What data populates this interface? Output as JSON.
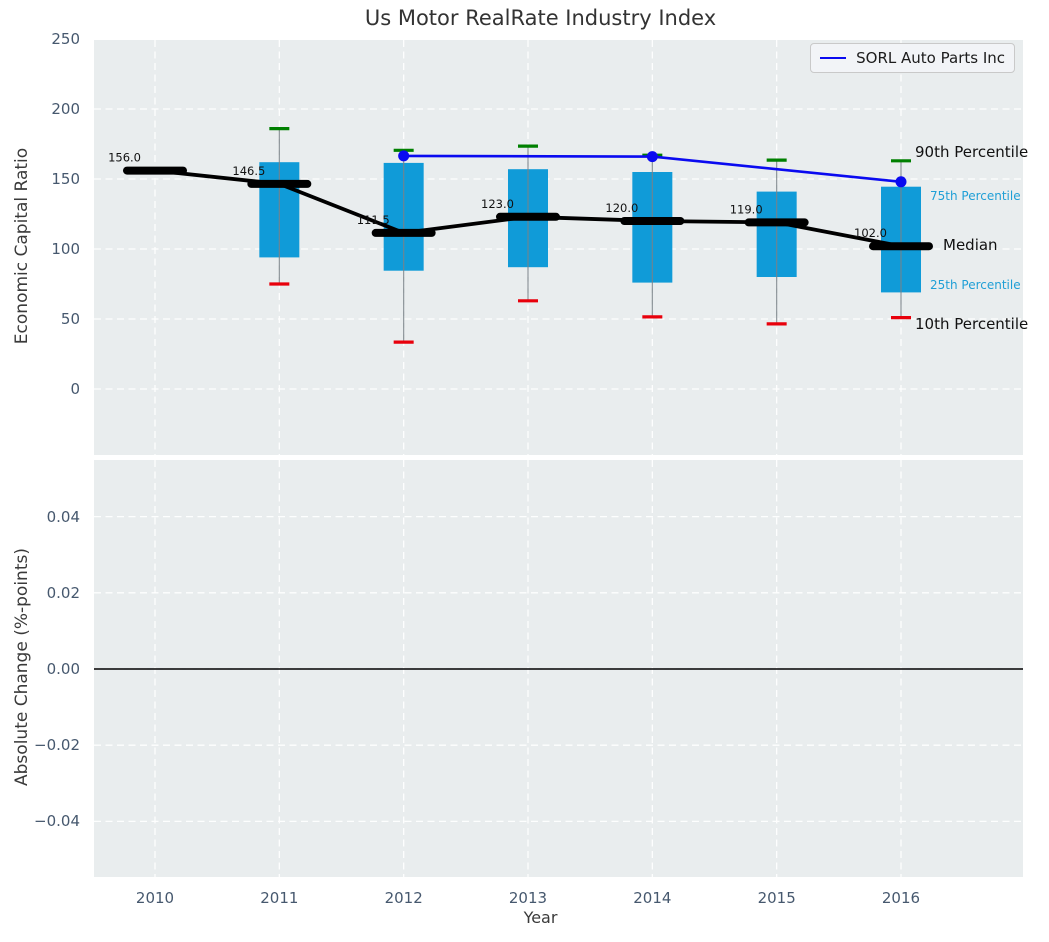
{
  "page": {
    "title": "Us Motor RealRate Industry Index"
  },
  "legend": {
    "label": "SORL Auto Parts Inc"
  },
  "right_labels": {
    "p90": "90th Percentile",
    "p75": "75th Percentile",
    "median": "Median",
    "p25": "25th Percentile",
    "p10": "10th Percentile"
  },
  "colors": {
    "axes_bg": "#e9edee",
    "grid": "#ffffff",
    "box_fill": "#109bd8",
    "whisker": "#7a8288",
    "cap_green": "#008000",
    "cap_red": "#e8000b",
    "median_line": "#000000",
    "sorl_line": "#0a0af0",
    "zero_line": "#000000",
    "tick_text": "#46586e",
    "annotation_cyan": "#1f9fd6"
  },
  "chart_data": [
    {
      "type": "boxplot_with_line",
      "title": "Us Motor RealRate Industry Index",
      "ylabel": "Economic Capital Ratio",
      "xlabel": "",
      "ylim": [
        -47,
        250
      ],
      "xlim": [
        2009.5,
        2017
      ],
      "grid": true,
      "legend_position": "upper right",
      "ytick_values": [
        250,
        200,
        150,
        100,
        50,
        0
      ],
      "ytick_labels": [
        "250",
        "200",
        "150",
        "100",
        "50",
        "0"
      ],
      "categories": [
        2010,
        2011,
        2012,
        2013,
        2014,
        2015,
        2016
      ],
      "boxes": [
        {
          "year": 2010,
          "median": 156.0
        },
        {
          "year": 2011,
          "p10": 75,
          "p25": 94,
          "median": 146.5,
          "p75": 162,
          "p90": 186
        },
        {
          "year": 2012,
          "p10": 33.5,
          "p25": 84.5,
          "median": 111.5,
          "p75": 161.5,
          "p90": 170.5
        },
        {
          "year": 2013,
          "p10": 63,
          "p25": 87,
          "median": 123.0,
          "p75": 157,
          "p90": 173.5
        },
        {
          "year": 2014,
          "p10": 51.5,
          "p25": 76,
          "median": 120.0,
          "p75": 155,
          "p90": 167
        },
        {
          "year": 2015,
          "p10": 46.5,
          "p25": 80,
          "median": 119.0,
          "p75": 141,
          "p90": 163.5
        },
        {
          "year": 2016,
          "p10": 51,
          "p25": 69,
          "median": 102.0,
          "p75": 144.5,
          "p90": 163
        }
      ],
      "median_labels": [
        "156.0",
        "146.5",
        "111.5",
        "123.0",
        "120.0",
        "119.0",
        "102.0"
      ],
      "series": [
        {
          "name": "SORL Auto Parts Inc",
          "x": [
            2012,
            2014,
            2016
          ],
          "y": [
            166.5,
            166,
            148
          ]
        }
      ]
    },
    {
      "type": "line",
      "title": "",
      "ylabel": "Absolute Change (%-points)",
      "xlabel": "Year",
      "ylim": [
        -0.0547,
        0.0549
      ],
      "xlim": [
        2009.5,
        2017
      ],
      "grid": true,
      "ytick_values": [
        0.04,
        0.02,
        0.0,
        -0.02,
        -0.04
      ],
      "ytick_labels": [
        "0.04",
        "0.02",
        "0.00",
        "−0.02",
        "−0.04"
      ],
      "categories": [
        2010,
        2011,
        2012,
        2013,
        2014,
        2015,
        2016
      ],
      "xtick_labels": [
        "2010",
        "2011",
        "2012",
        "2013",
        "2014",
        "2015",
        "2016"
      ],
      "zero_line": 0.0,
      "series": []
    }
  ]
}
